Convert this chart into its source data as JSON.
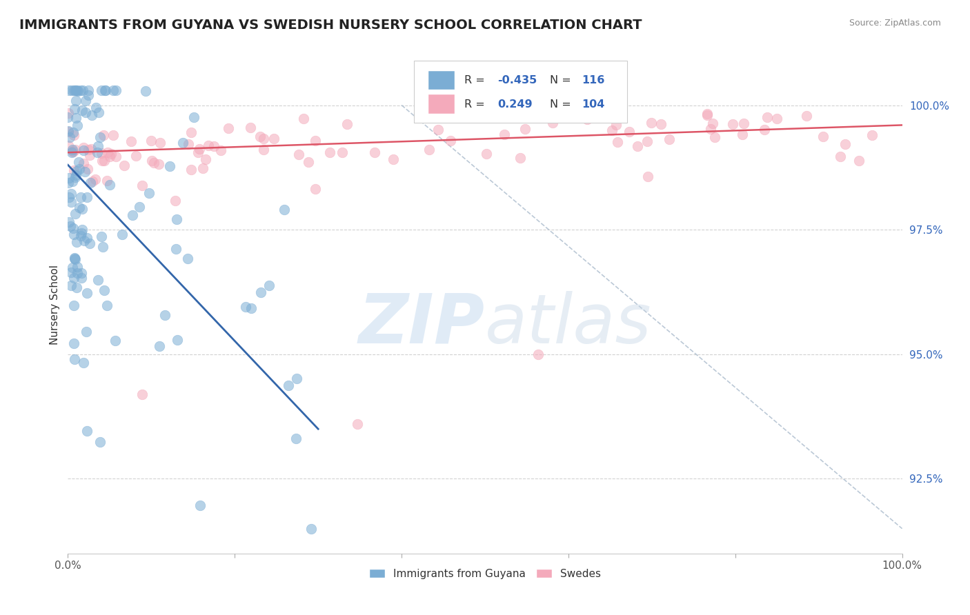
{
  "title": "IMMIGRANTS FROM GUYANA VS SWEDISH NURSERY SCHOOL CORRELATION CHART",
  "source": "Source: ZipAtlas.com",
  "ylabel": "Nursery School",
  "yticks": [
    100.0,
    97.5,
    95.0,
    92.5
  ],
  "ytick_labels": [
    "100.0%",
    "97.5%",
    "95.0%",
    "92.5%"
  ],
  "xmin": 0.0,
  "xmax": 100.0,
  "ymin": 91.0,
  "ymax": 101.0,
  "blue_color": "#7BADD4",
  "pink_color": "#F4AABB",
  "trend_blue_color": "#3366AA",
  "trend_pink_color": "#DD5566",
  "dash_color": "#AABBCC",
  "watermark_color": "#C8DCF0",
  "watermark_color2": "#C8D8E8",
  "legend_label_blue": "Immigrants from Guyana",
  "legend_label_pink": "Swedes",
  "blue_R": -0.435,
  "blue_N": 116,
  "pink_R": 0.249,
  "pink_N": 104,
  "blue_trend_x0": 0.0,
  "blue_trend_y0": 98.8,
  "blue_trend_x1": 30.0,
  "blue_trend_y1": 93.5,
  "pink_trend_x0": 0.0,
  "pink_trend_y0": 99.05,
  "pink_trend_x1": 100.0,
  "pink_trend_y1": 99.6,
  "dash_x0": 40.0,
  "dash_y0": 100.0,
  "dash_x1": 100.0,
  "dash_y1": 91.5
}
